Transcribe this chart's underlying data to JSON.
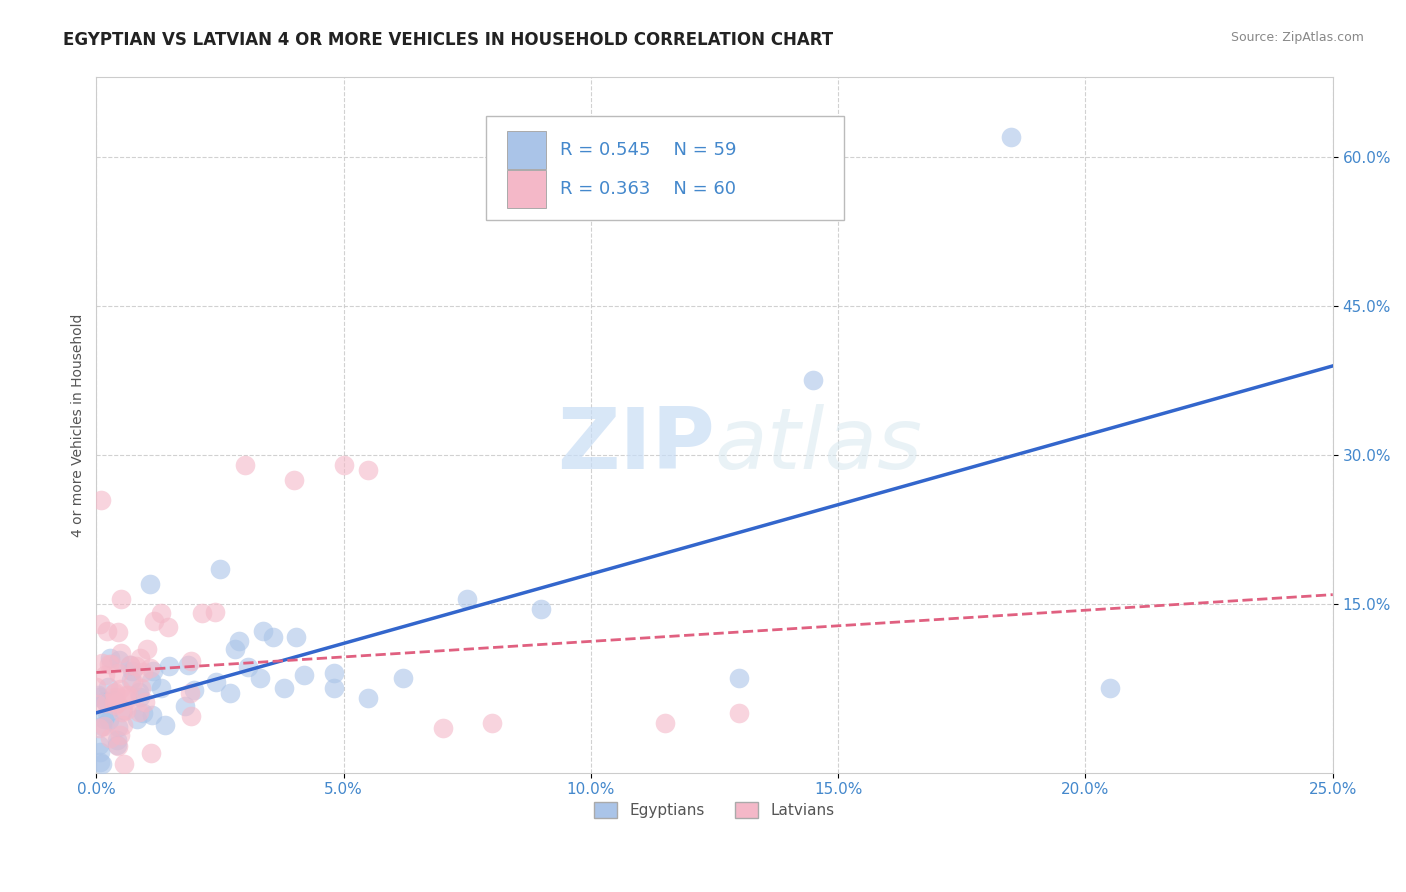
{
  "title": "EGYPTIAN VS LATVIAN 4 OR MORE VEHICLES IN HOUSEHOLD CORRELATION CHART",
  "source": "Source: ZipAtlas.com",
  "ylabel": "4 or more Vehicles in Household",
  "xlim": [
    0.0,
    0.25
  ],
  "ylim": [
    -0.02,
    0.68
  ],
  "xtick_labels": [
    "0.0%",
    "5.0%",
    "10.0%",
    "15.0%",
    "20.0%",
    "25.0%"
  ],
  "xtick_vals": [
    0.0,
    0.05,
    0.1,
    0.15,
    0.2,
    0.25
  ],
  "ytick_labels": [
    "15.0%",
    "30.0%",
    "45.0%",
    "60.0%"
  ],
  "ytick_vals": [
    0.15,
    0.3,
    0.45,
    0.6
  ],
  "grid_color": "#cccccc",
  "background_color": "#ffffff",
  "egyptian_color": "#aac4e8",
  "latvian_color": "#f4b8c8",
  "egyptian_line_color": "#3366cc",
  "latvian_line_color": "#e06080",
  "legend_R_egyptian": "R = 0.545",
  "legend_N_egyptian": "N = 59",
  "legend_R_latvian": "R = 0.363",
  "legend_N_latvian": "N = 60",
  "legend_label_egyptian": "Egyptians",
  "legend_label_latvian": "Latvians",
  "watermark": "ZIPatlas",
  "title_fontsize": 12,
  "axis_label_fontsize": 10,
  "tick_fontsize": 11,
  "legend_fontsize": 13
}
